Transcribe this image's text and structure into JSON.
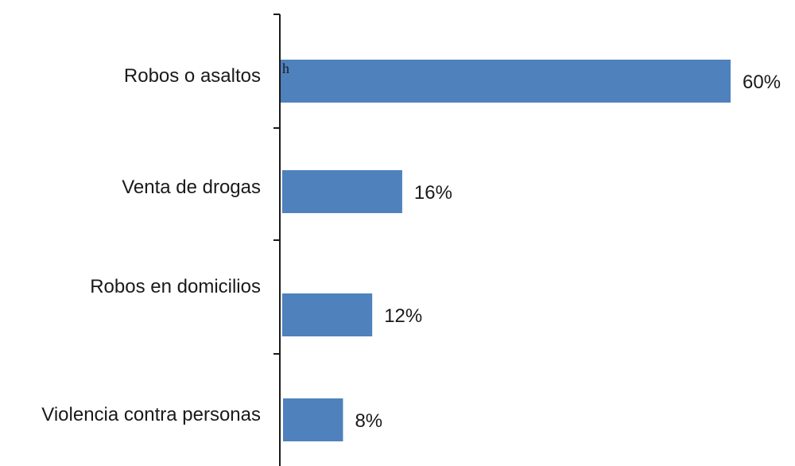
{
  "chart_data": {
    "type": "bar",
    "orientation": "horizontal",
    "categories": [
      "Robos o asaltos",
      "Venta de drogas",
      "Robos en domicilios",
      "Violencia contra personas"
    ],
    "values": [
      60,
      16,
      12,
      8
    ],
    "value_labels": [
      "60%",
      "16%",
      "12%",
      "8%"
    ],
    "stray_mark": "h",
    "title": "",
    "xlabel": "",
    "ylabel": "",
    "xlim": [
      0,
      60
    ],
    "grid": false,
    "legend": "none",
    "bar_color": "#4f81bd",
    "axis_color": "#1a1a1a"
  }
}
